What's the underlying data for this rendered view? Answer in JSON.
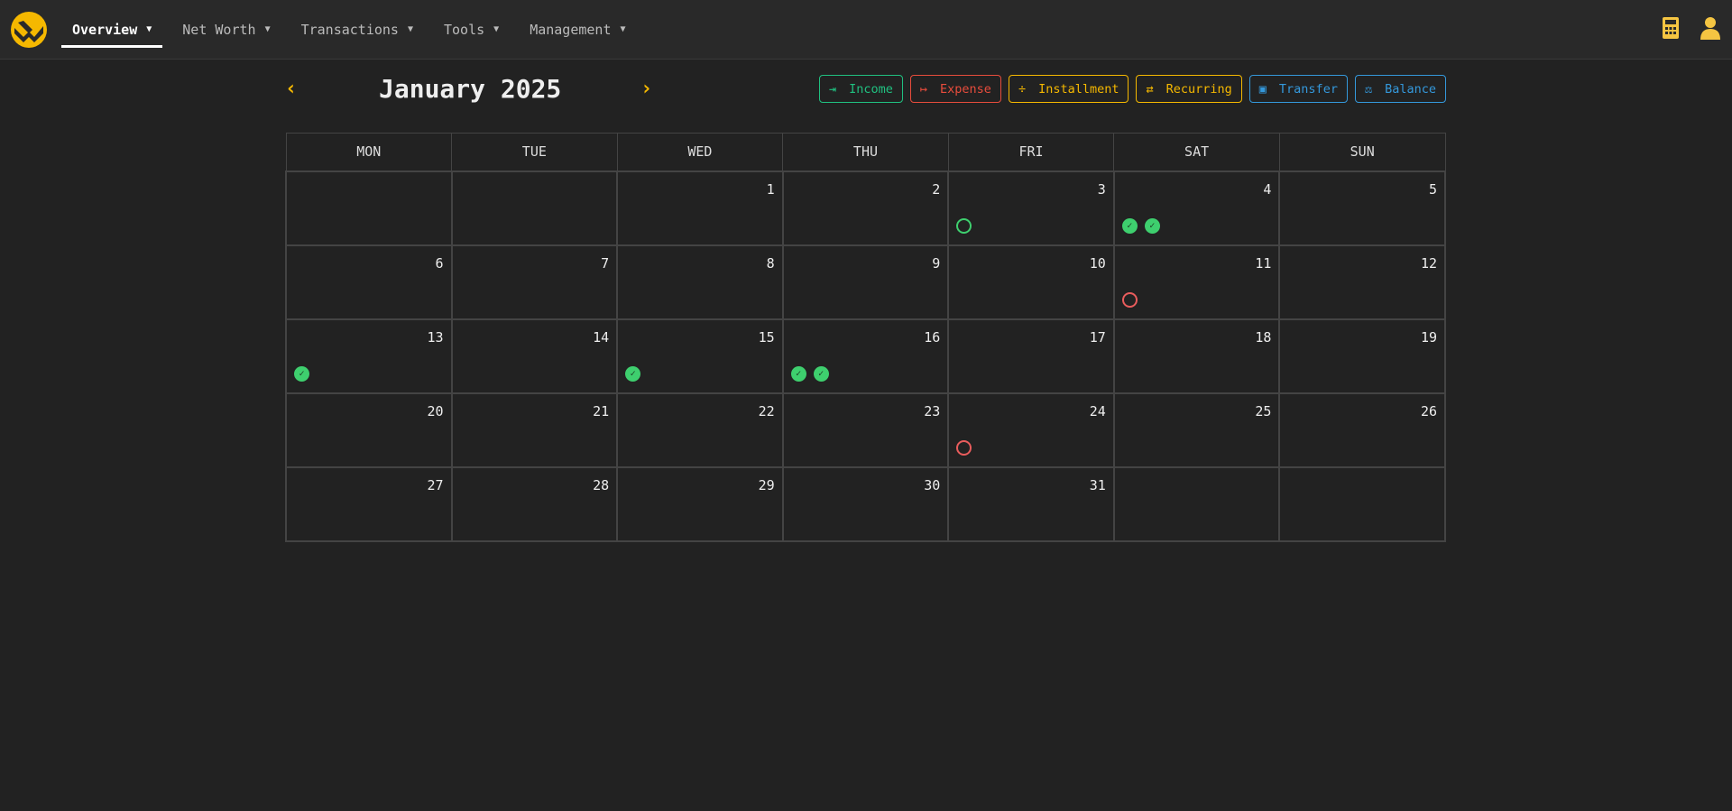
{
  "nav": {
    "items": [
      {
        "label": "Overview",
        "active": true
      },
      {
        "label": "Net Worth"
      },
      {
        "label": "Transactions"
      },
      {
        "label": "Tools"
      },
      {
        "label": "Management"
      }
    ],
    "right_icons": [
      "calculator-icon",
      "user-icon"
    ]
  },
  "calendar": {
    "title": "January 2025",
    "buttons": [
      {
        "label": "Income",
        "color": "#20c080",
        "icon": "sign-in-icon"
      },
      {
        "label": "Expense",
        "color": "#e74c3c",
        "icon": "sign-out-icon"
      },
      {
        "label": "Installment",
        "color": "#f5b800",
        "icon": "divide-icon"
      },
      {
        "label": "Recurring",
        "color": "#f5b800",
        "icon": "repeat-icon"
      },
      {
        "label": "Transfer",
        "color": "#3498db",
        "icon": "money-transfer-icon"
      },
      {
        "label": "Balance",
        "color": "#3498db",
        "icon": "scale-icon"
      }
    ],
    "weekdays": [
      "MON",
      "TUE",
      "WED",
      "THU",
      "FRI",
      "SAT",
      "SUN"
    ],
    "weeks": [
      [
        null,
        null,
        {
          "d": "1"
        },
        {
          "d": "2"
        },
        {
          "d": "3",
          "e": [
            "pending-income"
          ]
        },
        {
          "d": "4",
          "e": [
            "done",
            "done"
          ]
        },
        {
          "d": "5"
        }
      ],
      [
        {
          "d": "6"
        },
        {
          "d": "7"
        },
        {
          "d": "8"
        },
        {
          "d": "9"
        },
        {
          "d": "10"
        },
        {
          "d": "11",
          "e": [
            "pending-expense"
          ]
        },
        {
          "d": "12"
        }
      ],
      [
        {
          "d": "13",
          "e": [
            "done"
          ]
        },
        {
          "d": "14"
        },
        {
          "d": "15",
          "e": [
            "done"
          ]
        },
        {
          "d": "16",
          "e": [
            "done",
            "done"
          ],
          "today": true
        },
        {
          "d": "17"
        },
        {
          "d": "18"
        },
        {
          "d": "19"
        }
      ],
      [
        {
          "d": "20"
        },
        {
          "d": "21"
        },
        {
          "d": "22"
        },
        {
          "d": "23"
        },
        {
          "d": "24",
          "e": [
            "pending-expense"
          ]
        },
        {
          "d": "25"
        },
        {
          "d": "26"
        }
      ],
      [
        {
          "d": "27"
        },
        {
          "d": "28"
        },
        {
          "d": "29"
        },
        {
          "d": "30"
        },
        {
          "d": "31"
        },
        null,
        null
      ]
    ]
  }
}
